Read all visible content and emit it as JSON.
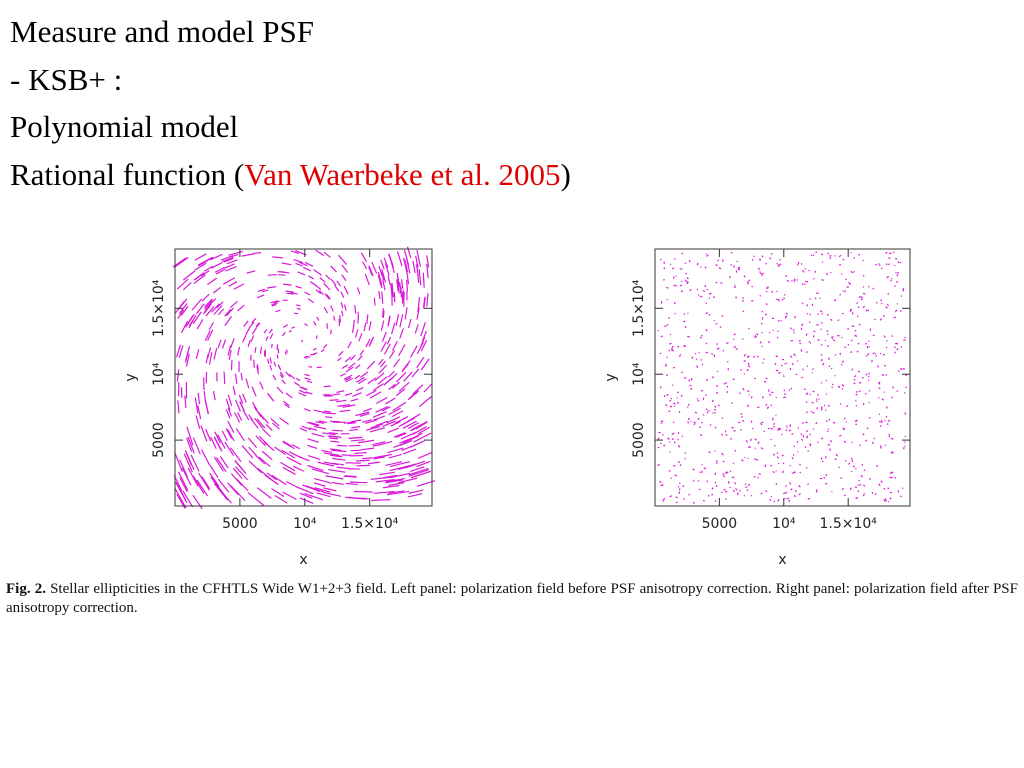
{
  "slide": {
    "lines": [
      "Measure and model PSF",
      "- KSB+ :",
      "Polynomial model"
    ],
    "last_line": {
      "before": "Rational function (",
      "citation": "Van Waerbeke et al. 2005",
      "after": ")"
    }
  },
  "figure": {
    "panels": [
      {
        "xlabel": "x",
        "ylabel": "y",
        "xlim": [
          0,
          19800
        ],
        "ylim": [
          0,
          19500
        ],
        "xticks": [
          5000,
          {
            "value": 10000,
            "label": "10⁴"
          },
          {
            "value": 15000,
            "label": "1.5×10⁴"
          }
        ],
        "yticks": [
          5000,
          {
            "value": 10000,
            "label": "10⁴"
          },
          {
            "value": 15000,
            "label": "1.5×10⁴"
          }
        ],
        "color": "#d81ad8"
      },
      {
        "xlabel": "x",
        "ylabel": "y",
        "xlim": [
          0,
          19800
        ],
        "ylim": [
          0,
          19500
        ],
        "xticks": [
          5000,
          {
            "value": 10000,
            "label": "10⁴"
          },
          {
            "value": 15000,
            "label": "1.5×10⁴"
          }
        ],
        "yticks": [
          5000,
          {
            "value": 10000,
            "label": "10⁴"
          },
          {
            "value": 15000,
            "label": "1.5×10⁴"
          }
        ],
        "color": "#d81ad8"
      }
    ],
    "caption": {
      "label": "Fig. 2.",
      "text": "Stellar ellipticities in the CFHTLS Wide W1+2+3 field. Left panel: polarization field before PSF anisotropy correction. Right panel: polarization field after PSF anisotropy correction."
    }
  }
}
